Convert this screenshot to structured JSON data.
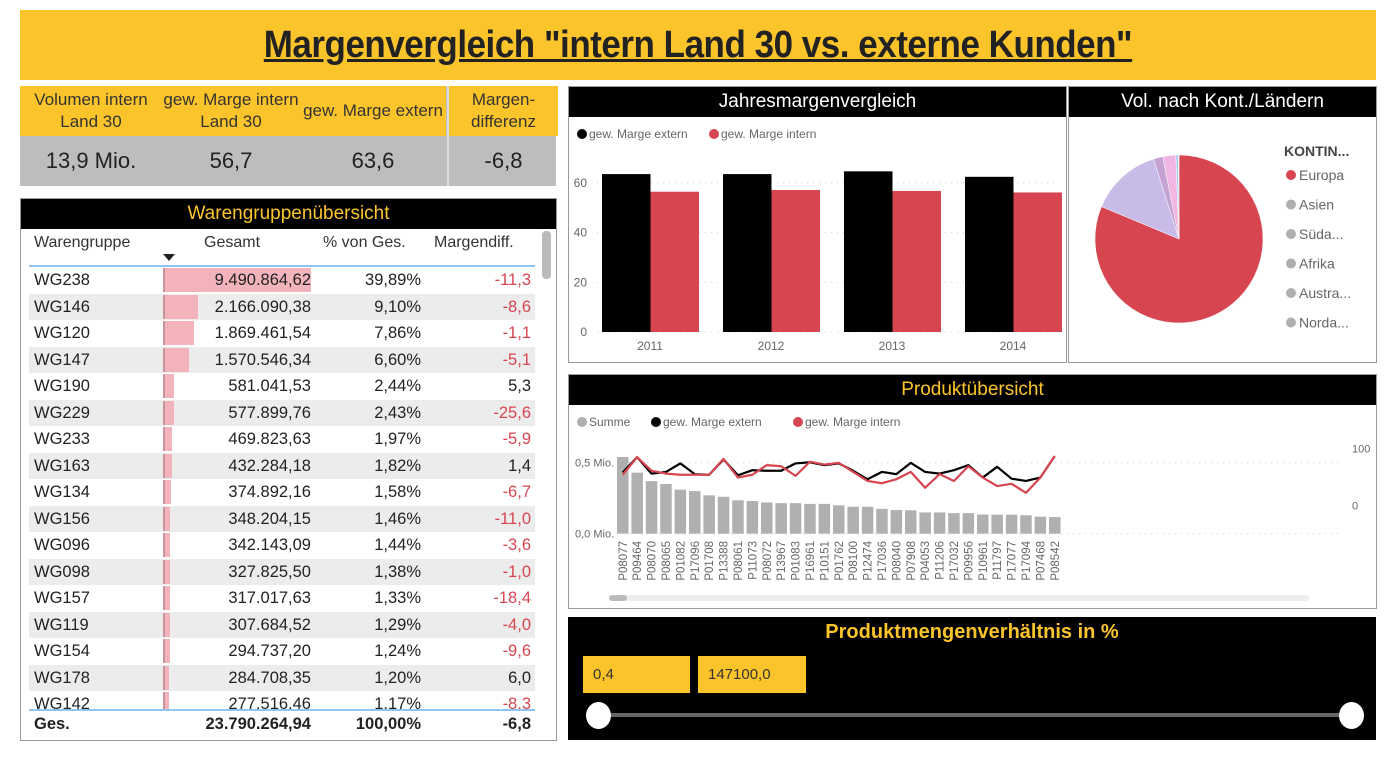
{
  "title": "Margenvergleich \"intern Land 30 vs. externe Kunden\"",
  "kpis": [
    {
      "label": "Volumen intern Land 30",
      "value": "13,9 Mio."
    },
    {
      "label": "gew. Marge intern Land 30",
      "value": "56,7"
    },
    {
      "label": "gew. Marge extern",
      "value": "63,6"
    },
    {
      "label": "Margen-differenz",
      "value": "-6,8"
    }
  ],
  "table": {
    "title": "Warengruppenübersicht",
    "columns": [
      "Warengruppe",
      "Gesamt",
      "% von Ges.",
      "Margendiff."
    ],
    "rows": [
      [
        "WG238",
        "9.490.864,62",
        "39,89%",
        "-11,3"
      ],
      [
        "WG146",
        "2.166.090,38",
        "9,10%",
        "-8,6"
      ],
      [
        "WG120",
        "1.869.461,54",
        "7,86%",
        "-1,1"
      ],
      [
        "WG147",
        "1.570.546,34",
        "6,60%",
        "-5,1"
      ],
      [
        "WG190",
        "581.041,53",
        "2,44%",
        "5,3"
      ],
      [
        "WG229",
        "577.899,76",
        "2,43%",
        "-25,6"
      ],
      [
        "WG233",
        "469.823,63",
        "1,97%",
        "-5,9"
      ],
      [
        "WG163",
        "432.284,18",
        "1,82%",
        "1,4"
      ],
      [
        "WG134",
        "374.892,16",
        "1,58%",
        "-6,7"
      ],
      [
        "WG156",
        "348.204,15",
        "1,46%",
        "-11,0"
      ],
      [
        "WG096",
        "342.143,09",
        "1,44%",
        "-3,6"
      ],
      [
        "WG098",
        "327.825,50",
        "1,38%",
        "-1,0"
      ],
      [
        "WG157",
        "317.017,63",
        "1,33%",
        "-18,4"
      ],
      [
        "WG119",
        "307.684,52",
        "1,29%",
        "-4,0"
      ],
      [
        "WG154",
        "294.737,20",
        "1,24%",
        "-9,6"
      ],
      [
        "WG178",
        "284.708,35",
        "1,20%",
        "6,0"
      ],
      [
        "WG142",
        "277.516,46",
        "1,17%",
        "-8,3"
      ]
    ],
    "total": [
      "Ges.",
      "23.790.264,94",
      "100,00%",
      "-6,8"
    ],
    "sort_icon": "sort-descending-icon"
  },
  "colors": {
    "accent_yellow": "#fcc42b",
    "extern": "#000000",
    "intern": "#d64550",
    "summe": "#b0b0b0"
  },
  "chart_data": [
    {
      "type": "bar",
      "title": "Jahresmargenvergleich",
      "categories": [
        "2011",
        "2012",
        "2013",
        "2014"
      ],
      "series": [
        {
          "name": "gew. Marge extern",
          "color": "#000000",
          "values": [
            63.6,
            63.6,
            64.7,
            62.5
          ]
        },
        {
          "name": "gew. Marge intern",
          "color": "#d64550",
          "values": [
            56.5,
            57.2,
            56.8,
            56.2
          ]
        }
      ],
      "yticks": [
        "0",
        "20",
        "40",
        "60"
      ],
      "ylim": [
        0,
        70
      ],
      "grid": true,
      "legend": "top-left"
    },
    {
      "type": "pie",
      "title": "Vol. nach Kont./Ländern",
      "legend_title": "KONTIN...",
      "slices": [
        {
          "label": "Europa",
          "value": 81.3,
          "color": "#d64550",
          "legend_color": "#d64550"
        },
        {
          "label": "Asien",
          "value": 13.8,
          "color": "#c8bbe8",
          "legend_color": "#b0aeae"
        },
        {
          "label": "Süda...",
          "value": 1.8,
          "color": "#c4a3d4",
          "legend_color": "#b0aeae"
        },
        {
          "label": "Afrika",
          "value": 2.5,
          "color": "#f2b6e2",
          "legend_color": "#b0aeae"
        },
        {
          "label": "Austra...",
          "value": 0.5,
          "color": "#a9cff0",
          "legend_color": "#b0aeae"
        },
        {
          "label": "Norda...",
          "value": 0.1,
          "color": "#9fc0e0",
          "legend_color": "#b0aeae"
        }
      ],
      "legend": "right"
    },
    {
      "type": "bar+line",
      "title": "Produktübersicht",
      "categories": [
        "P08077",
        "P09464",
        "P08070",
        "P08065",
        "P01082",
        "P17096",
        "P01708",
        "P13388",
        "P08061",
        "P11073",
        "P08072",
        "P13967",
        "P01083",
        "P16961",
        "P10151",
        "P01762",
        "P08100",
        "P12474",
        "P17036",
        "P08040",
        "P07908",
        "P04053",
        "P11206",
        "P17032",
        "P09956",
        "P10961",
        "P11797",
        "P17077",
        "P17094",
        "P07468",
        "P08542"
      ],
      "bars": {
        "name": "Summe",
        "axis": "left",
        "unit": "Mio.",
        "values": [
          0.54,
          0.43,
          0.37,
          0.35,
          0.31,
          0.3,
          0.27,
          0.26,
          0.235,
          0.23,
          0.22,
          0.215,
          0.215,
          0.21,
          0.21,
          0.2,
          0.19,
          0.19,
          0.175,
          0.167,
          0.165,
          0.15,
          0.15,
          0.145,
          0.145,
          0.135,
          0.134,
          0.134,
          0.13,
          0.12,
          0.117
        ]
      },
      "lines": [
        {
          "name": "gew. Marge extern",
          "axis": "right",
          "color": "#000000",
          "values": [
            58,
            85,
            56,
            59,
            74,
            55,
            54,
            81,
            53,
            62,
            61,
            61,
            74,
            76,
            71,
            74,
            61,
            46,
            59,
            55,
            75,
            59,
            56,
            62,
            71,
            49,
            68,
            47,
            43,
            49,
            87
          ]
        },
        {
          "name": "gew. Marge intern",
          "axis": "right",
          "color": "#d64550",
          "values": [
            54,
            85,
            61,
            56,
            54,
            54,
            54,
            82,
            49,
            54,
            71,
            69,
            52,
            77,
            72,
            75,
            59,
            43,
            39,
            46,
            59,
            31,
            55,
            43,
            69,
            49,
            34,
            38,
            22,
            49,
            87
          ]
        }
      ],
      "left_ticks": [
        "0,0 Mio.",
        "0,5 Mio."
      ],
      "right_ticks": [
        "0",
        "100"
      ],
      "legend_labels": [
        "Summe",
        "gew. Marge extern",
        "gew. Marge intern"
      ],
      "legend": "top-left"
    }
  ],
  "slider": {
    "title": "Produktmengenverhältnis in %",
    "min_value": "0,4",
    "max_value": "147100,0",
    "range_fraction": [
      0,
      1
    ]
  }
}
